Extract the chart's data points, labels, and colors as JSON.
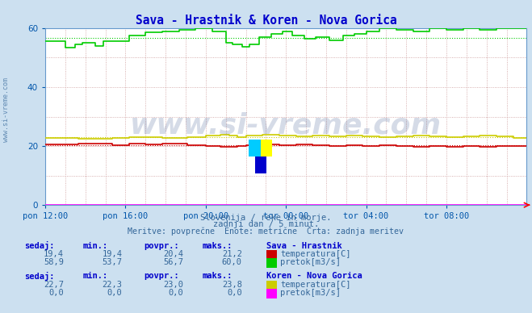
{
  "title": "Sava - Hrastnik & Koren - Nova Gorica",
  "title_color": "#0000cc",
  "bg_color": "#cce0f0",
  "plot_bg_color": "#ffffff",
  "grid_color": "#cc9999",
  "axis_color": "#6699cc",
  "tick_color": "#0055aa",
  "xlim": [
    0,
    288
  ],
  "ylim": [
    0,
    60
  ],
  "yticks": [
    0,
    20,
    40,
    60
  ],
  "xtick_labels": [
    "pon 12:00",
    "pon 16:00",
    "pon 20:00",
    "tor 00:00",
    "tor 04:00",
    "tor 08:00"
  ],
  "xtick_positions": [
    0,
    48,
    96,
    144,
    192,
    240
  ],
  "watermark": "www.si-vreme.com",
  "watermark_color": "#1a3a7a",
  "watermark_alpha": 0.18,
  "subtitle1": "Slovenija / reke in morje.",
  "subtitle2": "zadnji dan / 5 minut.",
  "subtitle3": "Meritve: povprečne  Enote: metrične  Črta: zadnja meritev",
  "subtitle_color": "#336699",
  "table_header_color": "#0000cc",
  "table_value_color": "#336699",
  "sava_label": "Sava - Hrastnik",
  "koren_label": "Koren - Nova Gorica",
  "col_headers": [
    "sedaj:",
    "min.:",
    "povpr.:",
    "maks.:"
  ],
  "sava_temp_vals": [
    "19,4",
    "19,4",
    "20,4",
    "21,2"
  ],
  "sava_pretok_vals": [
    "58,9",
    "53,7",
    "56,7",
    "60,0"
  ],
  "koren_temp_vals": [
    "22,7",
    "22,3",
    "23,0",
    "23,8"
  ],
  "koren_pretok_vals": [
    "0,0",
    "0,0",
    "0,0",
    "0,0"
  ],
  "sava_temp_color": "#cc0000",
  "sava_pretok_color": "#00cc00",
  "koren_temp_color": "#cccc00",
  "koren_pretok_color": "#ff00ff",
  "avg_temp_sava": 20.4,
  "avg_pretok_sava": 56.7,
  "avg_temp_koren": 23.0,
  "avg_pretok_koren": 0.0,
  "n_points": 289
}
